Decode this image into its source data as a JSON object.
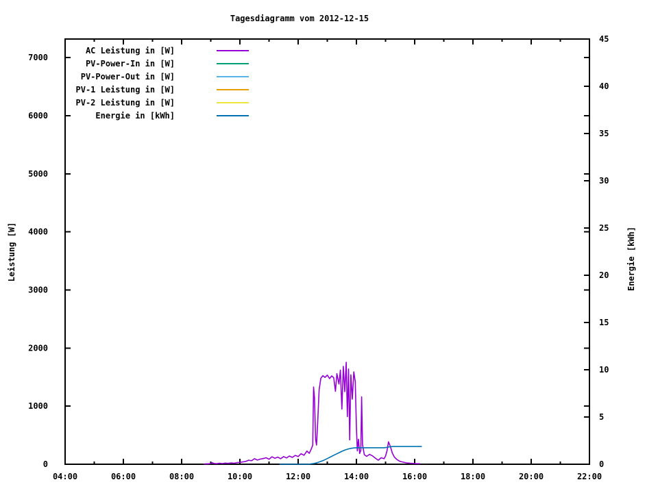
{
  "title": "Tagesdiagramm vom 2012-12-15",
  "chart_data": {
    "type": "line",
    "title": "Tagesdiagramm vom 2012-12-15",
    "grid": false,
    "legend_position": "top-left-inside",
    "x_axis": {
      "tick_labels": [
        "04:00",
        "06:00",
        "08:00",
        "10:00",
        "12:00",
        "14:00",
        "16:00",
        "18:00",
        "20:00",
        "22:00"
      ],
      "tick_hours": [
        4,
        6,
        8,
        10,
        12,
        14,
        16,
        18,
        20,
        22
      ],
      "minor_tick_hours": [
        5,
        7,
        9,
        11,
        13,
        15,
        17,
        19,
        21
      ],
      "range_hours": [
        4,
        22
      ]
    },
    "y_axis_left": {
      "label": "Leistung [W]",
      "ticks": [
        0,
        1000,
        2000,
        3000,
        4000,
        5000,
        6000,
        7000
      ],
      "range": [
        0,
        7320
      ]
    },
    "y_axis_right": {
      "label": "Energie [kWh]",
      "ticks": [
        0,
        5,
        10,
        15,
        20,
        25,
        30,
        35,
        40,
        45
      ],
      "range": [
        0,
        45
      ]
    },
    "series": [
      {
        "name": "AC Leistung in [W]",
        "color": "#9400d3",
        "axis": "left",
        "points": [
          [
            8.78,
            5
          ],
          [
            8.9,
            8
          ],
          [
            9.0,
            12
          ],
          [
            9.05,
            28
          ],
          [
            9.1,
            14
          ],
          [
            9.2,
            10
          ],
          [
            9.3,
            18
          ],
          [
            9.4,
            12
          ],
          [
            9.5,
            20
          ],
          [
            9.6,
            15
          ],
          [
            9.7,
            22
          ],
          [
            9.8,
            18
          ],
          [
            9.9,
            28
          ],
          [
            10.0,
            32
          ],
          [
            10.1,
            40
          ],
          [
            10.2,
            48
          ],
          [
            10.3,
            70
          ],
          [
            10.4,
            60
          ],
          [
            10.5,
            95
          ],
          [
            10.6,
            72
          ],
          [
            10.7,
            88
          ],
          [
            10.8,
            98
          ],
          [
            10.9,
            112
          ],
          [
            11.0,
            86
          ],
          [
            11.1,
            128
          ],
          [
            11.2,
            102
          ],
          [
            11.3,
            122
          ],
          [
            11.4,
            96
          ],
          [
            11.5,
            132
          ],
          [
            11.6,
            108
          ],
          [
            11.7,
            142
          ],
          [
            11.8,
            118
          ],
          [
            11.9,
            152
          ],
          [
            12.0,
            132
          ],
          [
            12.1,
            182
          ],
          [
            12.2,
            155
          ],
          [
            12.3,
            228
          ],
          [
            12.38,
            188
          ],
          [
            12.45,
            262
          ],
          [
            12.5,
            330
          ],
          [
            12.53,
            1330
          ],
          [
            12.56,
            1150
          ],
          [
            12.6,
            420
          ],
          [
            12.63,
            330
          ],
          [
            12.67,
            720
          ],
          [
            12.72,
            1280
          ],
          [
            12.78,
            1480
          ],
          [
            12.85,
            1525
          ],
          [
            12.92,
            1495
          ],
          [
            13.0,
            1535
          ],
          [
            13.08,
            1475
          ],
          [
            13.15,
            1520
          ],
          [
            13.22,
            1490
          ],
          [
            13.28,
            1255
          ],
          [
            13.33,
            1560
          ],
          [
            13.4,
            1380
          ],
          [
            13.45,
            1620
          ],
          [
            13.5,
            950
          ],
          [
            13.55,
            1685
          ],
          [
            13.6,
            1250
          ],
          [
            13.65,
            1755
          ],
          [
            13.69,
            820
          ],
          [
            13.73,
            1640
          ],
          [
            13.77,
            420
          ],
          [
            13.81,
            1540
          ],
          [
            13.86,
            1120
          ],
          [
            13.91,
            1590
          ],
          [
            13.96,
            1420
          ],
          [
            14.0,
            640
          ],
          [
            14.03,
            230
          ],
          [
            14.07,
            430
          ],
          [
            14.11,
            185
          ],
          [
            14.15,
            240
          ],
          [
            14.18,
            1160
          ],
          [
            14.21,
            340
          ],
          [
            14.27,
            165
          ],
          [
            14.35,
            135
          ],
          [
            14.45,
            170
          ],
          [
            14.55,
            145
          ],
          [
            14.65,
            105
          ],
          [
            14.75,
            70
          ],
          [
            14.85,
            112
          ],
          [
            14.95,
            95
          ],
          [
            15.0,
            140
          ],
          [
            15.05,
            230
          ],
          [
            15.1,
            385
          ],
          [
            15.17,
            300
          ],
          [
            15.23,
            195
          ],
          [
            15.3,
            125
          ],
          [
            15.4,
            78
          ],
          [
            15.5,
            48
          ],
          [
            15.6,
            36
          ],
          [
            15.72,
            24
          ],
          [
            15.85,
            16
          ],
          [
            16.0,
            12
          ],
          [
            16.17,
            9
          ]
        ]
      },
      {
        "name": "PV-Power-In in [W]",
        "color": "#009e73",
        "axis": "left",
        "points": []
      },
      {
        "name": "PV-Power-Out in [W]",
        "color": "#56b4e9",
        "axis": "left",
        "points": []
      },
      {
        "name": "PV-1 Leistung in [W]",
        "color": "#e69f00",
        "axis": "left",
        "points": []
      },
      {
        "name": "PV-2 Leistung in [W]",
        "color": "#f0e442",
        "axis": "left",
        "points": []
      },
      {
        "name": "Energie in [kWh]",
        "color": "#0072b2",
        "axis": "right",
        "points": [
          [
            11.37,
            0
          ],
          [
            12.35,
            0
          ],
          [
            12.45,
            0.04
          ],
          [
            12.55,
            0.09
          ],
          [
            12.65,
            0.16
          ],
          [
            12.75,
            0.27
          ],
          [
            12.88,
            0.42
          ],
          [
            13.0,
            0.6
          ],
          [
            13.12,
            0.79
          ],
          [
            13.25,
            0.99
          ],
          [
            13.38,
            1.19
          ],
          [
            13.5,
            1.37
          ],
          [
            13.62,
            1.52
          ],
          [
            13.73,
            1.62
          ],
          [
            13.83,
            1.69
          ],
          [
            13.93,
            1.73
          ],
          [
            14.05,
            1.75
          ],
          [
            14.95,
            1.75
          ],
          [
            15.05,
            1.79
          ],
          [
            15.15,
            1.85
          ],
          [
            15.25,
            1.88
          ],
          [
            16.23,
            1.88
          ]
        ]
      }
    ]
  }
}
